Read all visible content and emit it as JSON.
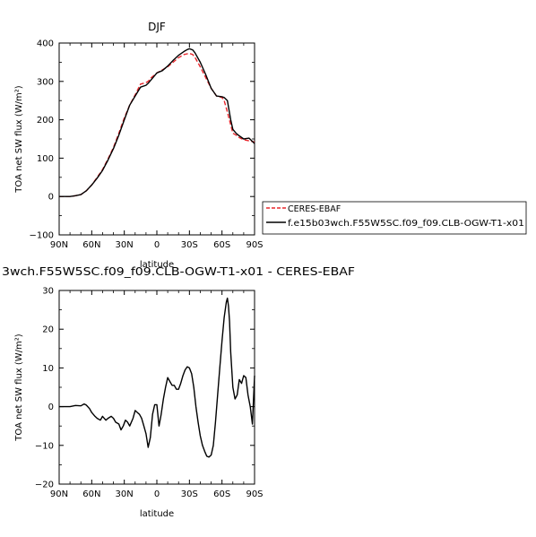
{
  "figure": {
    "top_title": "DJF",
    "bottom_title": "3wch.F55W5SC.f09_f09.CLB-OGW-T1-x01 - CERES-EBAF"
  },
  "legend": {
    "entries": [
      {
        "label": "CERES-EBAF",
        "color": "#e8262c",
        "dash": "dashed"
      },
      {
        "label": "f.e15b03wch.F55W5SC.f09_f09.CLB-OGW-T1-x01",
        "color": "#000000",
        "dash": "solid"
      }
    ]
  },
  "chart_data": [
    {
      "type": "line",
      "title": "DJF",
      "xlabel": "latitude",
      "ylabel": "TOA net SW flux (W/m²)",
      "xlim": [
        -90,
        90
      ],
      "ylim": [
        -100,
        400
      ],
      "xticks": [
        -90,
        -60,
        -30,
        0,
        30,
        60,
        90
      ],
      "xticklabels": [
        "90N",
        "60N",
        "30N",
        "0",
        "30S",
        "60S",
        "90S"
      ],
      "yticks": [
        -100,
        0,
        100,
        200,
        300,
        400
      ],
      "yticklabels": [
        "−100",
        "0",
        "100",
        "200",
        "300",
        "400"
      ],
      "legend_position": "right",
      "series": [
        {
          "name": "CERES-EBAF",
          "color": "#e8262c",
          "dash": "dashed",
          "x": [
            -90,
            -80,
            -75,
            -70,
            -65,
            -60,
            -55,
            -50,
            -45,
            -40,
            -35,
            -30,
            -25,
            -20,
            -15,
            -10,
            -8,
            -5,
            0,
            5,
            10,
            15,
            20,
            25,
            28,
            30,
            33,
            35,
            40,
            45,
            50,
            55,
            60,
            62,
            65,
            70,
            73,
            75,
            80,
            85,
            90
          ],
          "y": [
            0,
            0,
            2,
            5,
            15,
            30,
            50,
            70,
            98,
            128,
            165,
            205,
            238,
            265,
            293,
            297,
            300,
            310,
            322,
            330,
            338,
            350,
            362,
            370,
            372,
            373,
            370,
            363,
            338,
            310,
            282,
            262,
            258,
            250,
            220,
            165,
            160,
            155,
            148,
            145,
            142
          ]
        },
        {
          "name": "f.e15b03wch.F55W5SC.f09_f09.CLB-OGW-T1-x01",
          "color": "#000000",
          "dash": "solid",
          "x": [
            -90,
            -80,
            -75,
            -70,
            -65,
            -60,
            -55,
            -50,
            -45,
            -40,
            -35,
            -30,
            -25,
            -20,
            -15,
            -10,
            -8,
            -5,
            0,
            5,
            10,
            15,
            20,
            25,
            28,
            30,
            33,
            35,
            40,
            45,
            50,
            55,
            60,
            62,
            65,
            68,
            70,
            73,
            75,
            80,
            85,
            90
          ],
          "y": [
            0,
            0,
            2,
            5,
            15,
            30,
            48,
            68,
            95,
            125,
            160,
            200,
            238,
            262,
            285,
            290,
            295,
            305,
            322,
            328,
            340,
            355,
            368,
            378,
            383,
            385,
            382,
            375,
            350,
            318,
            282,
            262,
            260,
            258,
            250,
            200,
            175,
            165,
            160,
            150,
            152,
            138
          ]
        }
      ]
    },
    {
      "type": "line",
      "title": "3wch.F55W5SC.f09_f09.CLB-OGW-T1-x01 - CERES-EBAF",
      "xlabel": "latitude",
      "ylabel": "TOA net SW flux (W/m²)",
      "xlim": [
        -90,
        90
      ],
      "ylim": [
        -20,
        30
      ],
      "xticks": [
        -90,
        -60,
        -30,
        0,
        30,
        60,
        90
      ],
      "xticklabels": [
        "90N",
        "60N",
        "30N",
        "0",
        "30S",
        "60S",
        "90S"
      ],
      "yticks": [
        -20,
        -10,
        0,
        10,
        20,
        30
      ],
      "yticklabels": [
        "−20",
        "−10",
        "0",
        "10",
        "20",
        "30"
      ],
      "series": [
        {
          "name": "",
          "color": "#000000",
          "dash": "solid",
          "x": [
            -90,
            -80,
            -75,
            -70,
            -67,
            -65,
            -62,
            -60,
            -57,
            -55,
            -52,
            -50,
            -47,
            -45,
            -42,
            -40,
            -38,
            -35,
            -33,
            -31,
            -29,
            -27,
            -25,
            -22,
            -20,
            -18,
            -16,
            -14,
            -12,
            -10,
            -8,
            -6,
            -4,
            -2,
            0,
            2,
            4,
            6,
            8,
            10,
            12,
            14,
            16,
            18,
            20,
            22,
            24,
            26,
            28,
            30,
            32,
            34,
            36,
            38,
            40,
            42,
            44,
            46,
            48,
            50,
            52,
            54,
            56,
            58,
            60,
            62,
            64,
            65,
            66,
            67,
            68,
            70,
            72,
            74,
            76,
            78,
            80,
            82,
            84,
            86,
            88,
            90
          ],
          "y": [
            0,
            0,
            0.3,
            0.2,
            0.7,
            0.4,
            -0.5,
            -1.5,
            -2.5,
            -3,
            -3.5,
            -2.5,
            -3.5,
            -3,
            -2.5,
            -3,
            -4,
            -4.5,
            -6,
            -5,
            -3.5,
            -4,
            -5,
            -3,
            -1,
            -1.5,
            -2,
            -3,
            -5,
            -7,
            -10.5,
            -8,
            -2,
            0.5,
            0.5,
            -5,
            -2,
            2,
            5,
            7.5,
            6.5,
            5.5,
            5.5,
            4.5,
            4.5,
            6,
            8,
            9.5,
            10.3,
            10,
            8.5,
            5,
            0,
            -4,
            -7.5,
            -10,
            -11.5,
            -12.8,
            -13,
            -12.5,
            -10,
            -4,
            3,
            10,
            17,
            23,
            27,
            28,
            26,
            22,
            14,
            5,
            2,
            3,
            7,
            6,
            8,
            7.5,
            3,
            0,
            -4.5,
            8
          ]
        }
      ]
    }
  ]
}
